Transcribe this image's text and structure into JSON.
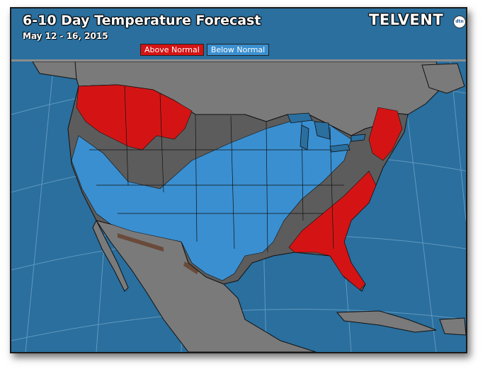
{
  "title": "6-10 Day Temperature Forecast",
  "date_range": "May 12 - 16, 2015",
  "brand": {
    "name": "TELVENT",
    "badge": "dtn"
  },
  "legend": [
    {
      "label": "Above Normal",
      "color": "#d41414"
    },
    {
      "label": "Below Normal",
      "color": "#3a8fd0"
    }
  ],
  "colors": {
    "ocean": "#2a6f9e",
    "land_neutral": "#7a7a7a",
    "near_normal": "#5c5c5c",
    "above_normal": "#d41414",
    "below_normal": "#3a8fd0",
    "boundaries": "#111111"
  },
  "regions": [
    {
      "name": "above-normal-northwest",
      "category": "Above Normal"
    },
    {
      "name": "above-normal-southeast",
      "category": "Above Normal"
    },
    {
      "name": "above-normal-northeast",
      "category": "Above Normal"
    },
    {
      "name": "below-normal-central",
      "category": "Below Normal"
    }
  ]
}
